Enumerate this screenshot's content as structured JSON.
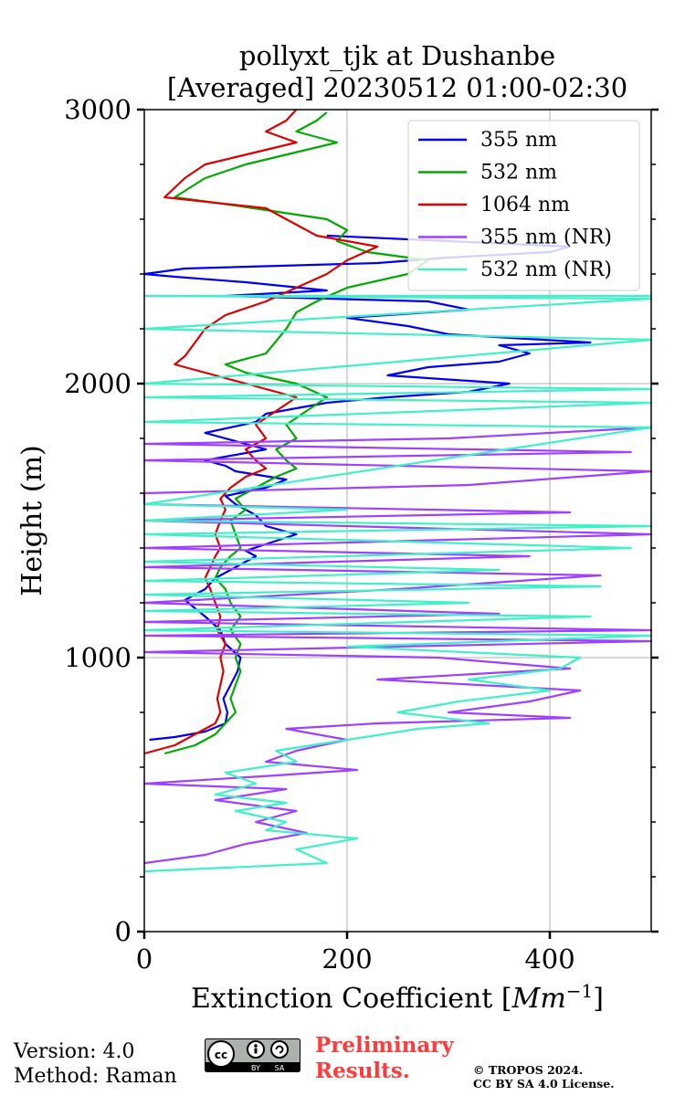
{
  "chart_data": {
    "type": "line",
    "title": [
      "pollyxt_tjk at Dushanbe",
      "[Averaged] 20230512 01:00-02:30"
    ],
    "xlabel": "Extinction Coefficient [",
    "xlabel_unit": "Mm",
    "xlabel_exp": "−1",
    "xlabel_end": "]",
    "ylabel": "Height (m)",
    "xlim": [
      0,
      500
    ],
    "ylim": [
      0,
      3000
    ],
    "x_ticks": [
      0,
      200,
      400
    ],
    "y_ticks": [
      0,
      1000,
      2000,
      3000
    ],
    "grid": true,
    "legend_position": "top-right",
    "series": [
      {
        "name": "355 nm",
        "color": "#0000ee",
        "points": [
          [
            5,
            700
          ],
          [
            30,
            710
          ],
          [
            60,
            730
          ],
          [
            80,
            760
          ],
          [
            82,
            800
          ],
          [
            78,
            850
          ],
          [
            85,
            900
          ],
          [
            92,
            950
          ],
          [
            95,
            1000
          ],
          [
            80,
            1050
          ],
          [
            75,
            1100
          ],
          [
            60,
            1150
          ],
          [
            50,
            1180
          ],
          [
            40,
            1210
          ],
          [
            60,
            1250
          ],
          [
            70,
            1290
          ],
          [
            90,
            1330
          ],
          [
            110,
            1370
          ],
          [
            100,
            1390
          ],
          [
            150,
            1450
          ],
          [
            120,
            1480
          ],
          [
            110,
            1520
          ],
          [
            90,
            1560
          ],
          [
            80,
            1590
          ],
          [
            120,
            1620
          ],
          [
            140,
            1650
          ],
          [
            90,
            1680
          ],
          [
            80,
            1700
          ],
          [
            60,
            1720
          ],
          [
            120,
            1760
          ],
          [
            90,
            1790
          ],
          [
            60,
            1820
          ],
          [
            110,
            1860
          ],
          [
            120,
            1890
          ],
          [
            180,
            1930
          ],
          [
            240,
            1950
          ],
          [
            320,
            1970
          ],
          [
            360,
            2000
          ],
          [
            240,
            2030
          ],
          [
            280,
            2060
          ],
          [
            350,
            2080
          ],
          [
            380,
            2110
          ],
          [
            350,
            2140
          ],
          [
            440,
            2150
          ],
          [
            300,
            2180
          ],
          [
            260,
            2210
          ],
          [
            200,
            2240
          ],
          [
            320,
            2270
          ],
          [
            280,
            2300
          ],
          [
            80,
            2320
          ],
          [
            180,
            2340
          ],
          [
            100,
            2370
          ],
          [
            30,
            2390
          ],
          [
            0,
            2400
          ],
          [
            40,
            2420
          ],
          [
            230,
            2440
          ],
          [
            300,
            2460
          ],
          [
            400,
            2480
          ],
          [
            420,
            2500
          ],
          [
            300,
            2520
          ],
          [
            180,
            2540
          ]
        ]
      },
      {
        "name": "532 nm",
        "color": "#00aa00",
        "points": [
          [
            20,
            650
          ],
          [
            50,
            680
          ],
          [
            70,
            720
          ],
          [
            80,
            760
          ],
          [
            90,
            800
          ],
          [
            85,
            850
          ],
          [
            90,
            900
          ],
          [
            95,
            950
          ],
          [
            90,
            1000
          ],
          [
            95,
            1050
          ],
          [
            85,
            1100
          ],
          [
            95,
            1150
          ],
          [
            85,
            1200
          ],
          [
            80,
            1250
          ],
          [
            70,
            1290
          ],
          [
            75,
            1330
          ],
          [
            85,
            1370
          ],
          [
            95,
            1400
          ],
          [
            90,
            1450
          ],
          [
            85,
            1500
          ],
          [
            100,
            1540
          ],
          [
            90,
            1580
          ],
          [
            110,
            1620
          ],
          [
            130,
            1660
          ],
          [
            150,
            1690
          ],
          [
            140,
            1720
          ],
          [
            130,
            1760
          ],
          [
            150,
            1800
          ],
          [
            140,
            1850
          ],
          [
            160,
            1900
          ],
          [
            180,
            1950
          ],
          [
            150,
            2000
          ],
          [
            100,
            2040
          ],
          [
            80,
            2070
          ],
          [
            120,
            2110
          ],
          [
            140,
            2200
          ],
          [
            150,
            2260
          ],
          [
            170,
            2300
          ],
          [
            200,
            2350
          ],
          [
            260,
            2400
          ],
          [
            280,
            2450
          ],
          [
            220,
            2480
          ],
          [
            190,
            2520
          ],
          [
            200,
            2560
          ],
          [
            180,
            2600
          ],
          [
            90,
            2650
          ],
          [
            30,
            2680
          ],
          [
            60,
            2750
          ],
          [
            100,
            2800
          ],
          [
            190,
            2880
          ],
          [
            150,
            2920
          ],
          [
            170,
            2960
          ],
          [
            180,
            2990
          ]
        ]
      },
      {
        "name": "1064 nm",
        "color": "#dd0000",
        "points": [
          [
            0,
            650
          ],
          [
            30,
            680
          ],
          [
            50,
            720
          ],
          [
            70,
            760
          ],
          [
            75,
            800
          ],
          [
            72,
            850
          ],
          [
            75,
            900
          ],
          [
            78,
            950
          ],
          [
            75,
            1000
          ],
          [
            80,
            1050
          ],
          [
            72,
            1100
          ],
          [
            75,
            1150
          ],
          [
            70,
            1200
          ],
          [
            65,
            1250
          ],
          [
            60,
            1290
          ],
          [
            65,
            1330
          ],
          [
            70,
            1370
          ],
          [
            75,
            1400
          ],
          [
            70,
            1450
          ],
          [
            75,
            1500
          ],
          [
            80,
            1540
          ],
          [
            75,
            1580
          ],
          [
            85,
            1620
          ],
          [
            100,
            1660
          ],
          [
            120,
            1690
          ],
          [
            110,
            1720
          ],
          [
            100,
            1760
          ],
          [
            120,
            1800
          ],
          [
            110,
            1850
          ],
          [
            130,
            1900
          ],
          [
            150,
            1950
          ],
          [
            100,
            2000
          ],
          [
            50,
            2050
          ],
          [
            30,
            2070
          ],
          [
            40,
            2100
          ],
          [
            60,
            2200
          ],
          [
            80,
            2250
          ],
          [
            120,
            2300
          ],
          [
            150,
            2350
          ],
          [
            180,
            2400
          ],
          [
            200,
            2450
          ],
          [
            230,
            2500
          ],
          [
            170,
            2540
          ],
          [
            150,
            2580
          ],
          [
            120,
            2640
          ],
          [
            20,
            2680
          ],
          [
            40,
            2750
          ],
          [
            60,
            2800
          ],
          [
            150,
            2880
          ],
          [
            120,
            2920
          ],
          [
            140,
            2960
          ],
          [
            150,
            3000
          ]
        ]
      },
      {
        "name": "355 nm (NR)",
        "color": "#a040ff",
        "points": [
          [
            0,
            250
          ],
          [
            60,
            280
          ],
          [
            100,
            320
          ],
          [
            160,
            360
          ],
          [
            110,
            400
          ],
          [
            150,
            440
          ],
          [
            70,
            480
          ],
          [
            140,
            520
          ],
          [
            0,
            540
          ],
          [
            130,
            570
          ],
          [
            210,
            590
          ],
          [
            120,
            620
          ],
          [
            150,
            660
          ],
          [
            200,
            700
          ],
          [
            140,
            740
          ],
          [
            230,
            760
          ],
          [
            420,
            780
          ],
          [
            300,
            800
          ],
          [
            380,
            840
          ],
          [
            430,
            880
          ],
          [
            230,
            920
          ],
          [
            420,
            960
          ],
          [
            290,
            1000
          ],
          [
            0,
            1020
          ],
          [
            500,
            1060
          ],
          [
            0,
            1080
          ],
          [
            500,
            1100
          ],
          [
            0,
            1130
          ],
          [
            350,
            1160
          ],
          [
            0,
            1200
          ],
          [
            250,
            1250
          ],
          [
            450,
            1300
          ],
          [
            0,
            1330
          ],
          [
            380,
            1370
          ],
          [
            0,
            1400
          ],
          [
            500,
            1450
          ],
          [
            0,
            1500
          ],
          [
            420,
            1530
          ],
          [
            0,
            1560
          ],
          [
            0,
            1600
          ],
          [
            320,
            1630
          ],
          [
            500,
            1680
          ],
          [
            0,
            1720
          ],
          [
            480,
            1750
          ],
          [
            0,
            1780
          ],
          [
            300,
            1800
          ],
          [
            500,
            1840
          ]
        ]
      },
      {
        "name": "532 nm (NR)",
        "color": "#40f0c8",
        "points": [
          [
            0,
            220
          ],
          [
            180,
            250
          ],
          [
            150,
            300
          ],
          [
            210,
            340
          ],
          [
            120,
            370
          ],
          [
            140,
            400
          ],
          [
            90,
            440
          ],
          [
            140,
            470
          ],
          [
            70,
            500
          ],
          [
            110,
            540
          ],
          [
            80,
            580
          ],
          [
            150,
            620
          ],
          [
            130,
            660
          ],
          [
            200,
            700
          ],
          [
            270,
            740
          ],
          [
            340,
            760
          ],
          [
            250,
            800
          ],
          [
            310,
            840
          ],
          [
            400,
            880
          ],
          [
            320,
            920
          ],
          [
            410,
            960
          ],
          [
            430,
            1000
          ],
          [
            200,
            1040
          ],
          [
            500,
            1080
          ],
          [
            0,
            1100
          ],
          [
            440,
            1150
          ],
          [
            0,
            1170
          ],
          [
            320,
            1200
          ],
          [
            0,
            1230
          ],
          [
            450,
            1260
          ],
          [
            0,
            1280
          ],
          [
            350,
            1320
          ],
          [
            0,
            1350
          ],
          [
            480,
            1400
          ],
          [
            0,
            1450
          ],
          [
            500,
            1480
          ],
          [
            0,
            1500
          ],
          [
            200,
            1540
          ],
          [
            0,
            1560
          ],
          [
            500,
            1840
          ],
          [
            0,
            1860
          ],
          [
            500,
            1930
          ],
          [
            0,
            1950
          ],
          [
            500,
            1980
          ],
          [
            0,
            2000
          ],
          [
            500,
            2160
          ],
          [
            0,
            2200
          ],
          [
            500,
            2310
          ],
          [
            0,
            2320
          ],
          [
            500,
            2320
          ]
        ]
      }
    ]
  },
  "footer": {
    "version": "Version: 4.0",
    "method": "Method: Raman",
    "preliminary_line1": "Preliminary",
    "preliminary_line2": "Results.",
    "copyright_line1": "© TROPOS 2024.",
    "copyright_line2": "CC BY SA 4.0 License.",
    "cc_icon": "cc-by-sa-icon",
    "cc_by": "BY",
    "cc_sa": "SA"
  }
}
